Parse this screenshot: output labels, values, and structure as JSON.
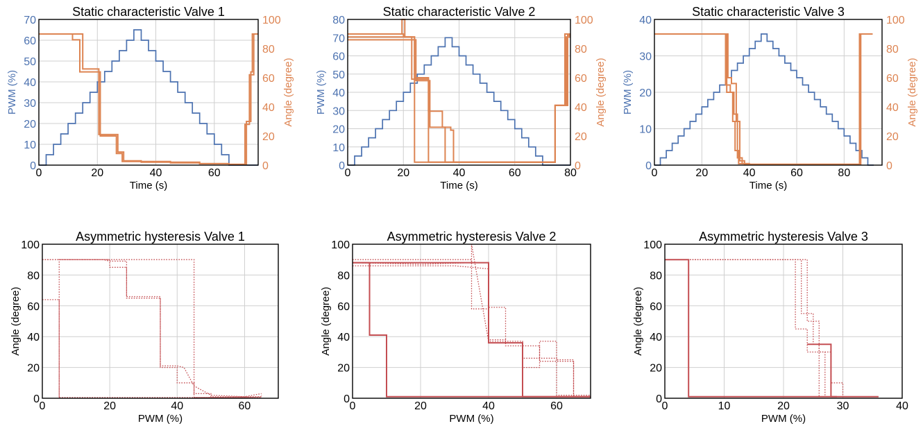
{
  "colors": {
    "pwm": "#4c72b0",
    "angle": "#dd8452",
    "hysteresis": "#c44e52",
    "grid": "#cfcfcf"
  },
  "chart_data": [
    {
      "type": "line",
      "title": "Static characteristic Valve 1",
      "xlabel": "Time (s)",
      "ylabel": "PWM (%)",
      "y2label": "Angle (degree)",
      "xlim": [
        0,
        75
      ],
      "ylim": [
        0,
        70
      ],
      "y2lim": [
        0,
        100
      ],
      "xticks": [
        0,
        20,
        40,
        60
      ],
      "yticks": [
        0,
        10,
        20,
        30,
        40,
        50,
        60,
        70
      ],
      "y2ticks": [
        0,
        20,
        40,
        60,
        80,
        100
      ],
      "grid": true,
      "series": [
        {
          "axis": "left",
          "style": "step",
          "x": [
            0,
            2.5,
            5,
            7.5,
            10,
            12.5,
            15,
            17.5,
            20,
            22.5,
            25,
            27.5,
            30,
            32.5,
            35,
            37.5,
            40,
            42.5,
            45,
            47.5,
            50,
            52.5,
            55,
            57.5,
            60,
            62.5,
            65,
            67.5,
            70,
            72.5,
            75
          ],
          "y": [
            0,
            5,
            10,
            15,
            20,
            25,
            30,
            35,
            40,
            45,
            50,
            55,
            60,
            65,
            60,
            55,
            50,
            45,
            40,
            35,
            30,
            25,
            20,
            15,
            10,
            5,
            0,
            0,
            0,
            0,
            0
          ]
        },
        {
          "axis": "right",
          "style": "step",
          "x": [
            0,
            12,
            15,
            19.5,
            20.5,
            26,
            27,
            29,
            35,
            45,
            55,
            65,
            70,
            71,
            72.5,
            73,
            75
          ],
          "y": [
            90,
            90,
            66,
            66,
            21,
            21,
            9,
            3,
            2.5,
            2,
            1,
            0.5,
            0.5,
            30,
            64,
            90,
            90
          ]
        },
        {
          "axis": "right",
          "style": "step",
          "x": [
            0,
            11.5,
            14,
            20,
            21,
            25.5,
            26.5,
            28.5,
            35,
            45,
            55,
            65,
            69.5,
            70.5,
            72,
            73.5,
            75
          ],
          "y": [
            90,
            86,
            64,
            64,
            20,
            20,
            8,
            2.5,
            2,
            1.5,
            1,
            0.5,
            0.5,
            28,
            62,
            90,
            90
          ]
        }
      ]
    },
    {
      "type": "line",
      "title": "Static characteristic Valve 2",
      "xlabel": "Time (s)",
      "ylabel": "PWM (%)",
      "y2label": "Angle (degree)",
      "xlim": [
        0,
        80
      ],
      "ylim": [
        0,
        80
      ],
      "y2lim": [
        0,
        100
      ],
      "xticks": [
        0,
        20,
        40,
        60,
        80
      ],
      "yticks": [
        0,
        10,
        20,
        30,
        40,
        50,
        60,
        70,
        80
      ],
      "y2ticks": [
        0,
        20,
        40,
        60,
        80,
        100
      ],
      "grid": true,
      "series": [
        {
          "axis": "left",
          "style": "step",
          "x": [
            0,
            2.5,
            5,
            7.5,
            10,
            12.5,
            15,
            17.5,
            20,
            22.5,
            25,
            27.5,
            30,
            32.5,
            35,
            37.5,
            40,
            42.5,
            45,
            47.5,
            50,
            52.5,
            55,
            57.5,
            60,
            62.5,
            65,
            67.5,
            70,
            72.5,
            75,
            77.5,
            80
          ],
          "y": [
            0,
            5,
            10,
            15,
            20,
            25,
            30,
            35,
            40,
            45,
            50,
            55,
            60,
            65,
            70,
            65,
            60,
            55,
            50,
            45,
            40,
            35,
            30,
            25,
            20,
            15,
            10,
            5,
            0,
            0,
            0,
            0,
            0
          ]
        },
        {
          "axis": "right",
          "style": "step",
          "x": [
            0,
            20,
            23,
            28,
            29,
            40,
            50,
            60,
            73.5,
            74.5,
            79,
            80
          ],
          "y": [
            90,
            88,
            59,
            59,
            2,
            2,
            2,
            2,
            2,
            41,
            90,
            90
          ]
        },
        {
          "axis": "right",
          "style": "step",
          "x": [
            0,
            22.5,
            24,
            29,
            30,
            34,
            35,
            45,
            55,
            65,
            73.5,
            74.5,
            79,
            80
          ],
          "y": [
            88,
            88,
            60,
            37,
            37,
            26,
            2,
            2,
            2,
            2,
            2,
            41,
            89,
            89
          ]
        },
        {
          "axis": "right",
          "style": "step",
          "x": [
            0,
            23,
            24.5,
            29.5,
            30.5,
            37,
            38,
            50,
            60,
            70,
            73.5,
            74.5,
            78.5,
            80
          ],
          "y": [
            86,
            86,
            58,
            26,
            26,
            24,
            2,
            2,
            2,
            2,
            2,
            41,
            88,
            88
          ]
        },
        {
          "axis": "right",
          "style": "step",
          "x": [
            0,
            19.5,
            20.5,
            23,
            24,
            30,
            35,
            45,
            55,
            65,
            73.5,
            74.5,
            78,
            80
          ],
          "y": [
            90,
            100,
            88,
            88,
            2,
            2,
            2,
            2,
            2,
            2,
            2,
            41,
            90,
            90
          ]
        }
      ]
    },
    {
      "type": "line",
      "title": "Static characteristic Valve 3",
      "xlabel": "Time (s)",
      "ylabel": "PWM (%)",
      "y2label": "Angle (degree)",
      "xlim": [
        0,
        96
      ],
      "ylim": [
        0,
        40
      ],
      "y2lim": [
        0,
        100
      ],
      "xticks": [
        0,
        20,
        40,
        60,
        80
      ],
      "yticks": [
        0,
        10,
        20,
        30,
        40
      ],
      "y2ticks": [
        0,
        20,
        40,
        60,
        80,
        100
      ],
      "grid": true,
      "series": [
        {
          "axis": "left",
          "style": "step",
          "x": [
            0,
            2.5,
            5,
            7.5,
            10,
            12.5,
            15,
            17.5,
            20,
            22.5,
            25,
            27.5,
            30,
            32.5,
            35,
            37.5,
            40,
            42.5,
            45,
            47.5,
            50,
            52.5,
            55,
            57.5,
            60,
            62.5,
            65,
            67.5,
            70,
            72.5,
            75,
            77.5,
            80,
            82.5,
            85,
            87.5,
            90,
            92.5
          ],
          "y": [
            0,
            2,
            4,
            6,
            8,
            10,
            12,
            14,
            16,
            18,
            20,
            22,
            24,
            26,
            28,
            30,
            32,
            34,
            36,
            34,
            32,
            30,
            28,
            26,
            24,
            22,
            20,
            18,
            16,
            14,
            12,
            10,
            8,
            6,
            4,
            2,
            0,
            0
          ]
        },
        {
          "axis": "right",
          "style": "step",
          "x": [
            0,
            28.5,
            30,
            32,
            33.5,
            35,
            37,
            40,
            50,
            60,
            70,
            80,
            85.5,
            86.5,
            92
          ],
          "y": [
            90,
            90,
            55,
            50,
            35,
            5,
            1,
            0.5,
            0.5,
            0.5,
            0.5,
            0.5,
            0.5,
            90,
            90
          ]
        },
        {
          "axis": "right",
          "style": "step",
          "x": [
            0,
            29,
            30.5,
            33,
            34,
            35.5,
            38,
            40,
            50,
            60,
            70,
            80,
            85.5,
            86.5,
            92
          ],
          "y": [
            90,
            90,
            50,
            30,
            10,
            1,
            0.5,
            0.5,
            0.5,
            0.5,
            0.5,
            0.5,
            0.5,
            90,
            90
          ]
        },
        {
          "axis": "right",
          "style": "step",
          "x": [
            0,
            29.5,
            31,
            32.5,
            34.5,
            36,
            38,
            40,
            50,
            60,
            70,
            80,
            86,
            87,
            92
          ],
          "y": [
            90,
            90,
            60,
            56,
            30,
            3,
            1,
            0.5,
            0.5,
            0.5,
            0.5,
            0.5,
            0.5,
            90,
            90
          ]
        }
      ]
    },
    {
      "type": "line",
      "title": "Asymmetric hysteresis Valve 1",
      "xlabel": "PWM (%)",
      "ylabel": "Angle (degree)",
      "xlim": [
        0,
        70
      ],
      "ylim": [
        0,
        100
      ],
      "xticks": [
        0,
        20,
        40,
        60
      ],
      "yticks": [
        0,
        20,
        40,
        60,
        80,
        100
      ],
      "grid": true,
      "series": [
        {
          "style": "dotted",
          "x": [
            0,
            20,
            20,
            25,
            25,
            35,
            35,
            40,
            40,
            45,
            45,
            50,
            50,
            65,
            65
          ],
          "y": [
            90,
            90,
            85,
            85,
            65,
            65,
            20,
            20,
            10,
            10,
            3,
            3,
            1,
            1,
            2
          ]
        },
        {
          "style": "dotted",
          "x": [
            0,
            18,
            20,
            25,
            25,
            34,
            35,
            35,
            40,
            42,
            45,
            45,
            50,
            60,
            65
          ],
          "y": [
            90,
            90,
            89,
            89,
            66,
            66,
            66,
            21,
            21,
            20,
            8,
            8,
            2,
            1,
            3
          ]
        },
        {
          "style": "dotted",
          "x": [
            0,
            5,
            5,
            10,
            20,
            30,
            40,
            50,
            60,
            65,
            65
          ],
          "y": [
            64,
            64,
            0.5,
            0.5,
            0.5,
            0.5,
            0.5,
            0.5,
            0.5,
            0.5,
            0.5
          ]
        },
        {
          "style": "dotted",
          "x": [
            5,
            5,
            10,
            30,
            45,
            45,
            50,
            60,
            65
          ],
          "y": [
            0.5,
            90,
            90,
            90,
            90,
            0.5,
            0.5,
            0.5,
            1
          ]
        }
      ]
    },
    {
      "type": "line",
      "title": "Asymmetric hysteresis Valve 2",
      "xlabel": "PWM (%)",
      "ylabel": "Angle (degree)",
      "xlim": [
        0,
        70
      ],
      "ylim": [
        0,
        100
      ],
      "xticks": [
        0,
        20,
        40,
        60
      ],
      "yticks": [
        0,
        20,
        40,
        60,
        80,
        100
      ],
      "grid": true,
      "series": [
        {
          "style": "solid",
          "x": [
            0,
            5,
            5,
            10,
            10,
            20,
            40,
            60,
            70
          ],
          "y": [
            88,
            88,
            41,
            41,
            1,
            1,
            1,
            1,
            1
          ]
        },
        {
          "style": "solid",
          "x": [
            0,
            40,
            40,
            50,
            50,
            60,
            70
          ],
          "y": [
            88,
            88,
            36,
            36,
            1,
            1,
            1
          ]
        },
        {
          "style": "dotted",
          "x": [
            0,
            35,
            35,
            40,
            40,
            45,
            45,
            50,
            50,
            60,
            60,
            65,
            65,
            70
          ],
          "y": [
            90,
            90,
            58,
            58,
            38,
            38,
            36,
            36,
            26,
            26,
            25,
            25,
            1,
            1
          ]
        },
        {
          "style": "dotted",
          "x": [
            0,
            20,
            35,
            35,
            40,
            40,
            50,
            50,
            55,
            55,
            60,
            60,
            70
          ],
          "y": [
            88,
            87,
            88,
            100,
            37,
            37,
            37,
            20,
            20,
            37,
            37,
            2,
            2
          ]
        },
        {
          "style": "dotted",
          "x": [
            0,
            30,
            40,
            40,
            45,
            45,
            55,
            55,
            65,
            65,
            70
          ],
          "y": [
            86,
            86,
            84,
            59,
            59,
            34,
            34,
            24,
            24,
            1,
            1
          ]
        }
      ]
    },
    {
      "type": "line",
      "title": "Asymmetric hysteresis Valve 3",
      "xlabel": "PWM (%)",
      "ylabel": "Angle (degree)",
      "xlim": [
        0,
        40
      ],
      "ylim": [
        0,
        100
      ],
      "xticks": [
        0,
        10,
        20,
        30,
        40
      ],
      "yticks": [
        0,
        20,
        40,
        60,
        80,
        100
      ],
      "grid": true,
      "series": [
        {
          "style": "solid",
          "x": [
            0,
            4,
            4,
            10,
            20,
            30,
            36
          ],
          "y": [
            90,
            90,
            1,
            1,
            1,
            1,
            1
          ]
        },
        {
          "style": "solid",
          "x": [
            24,
            28,
            28,
            29
          ],
          "y": [
            35,
            35,
            1,
            1
          ]
        },
        {
          "style": "dotted",
          "x": [
            0,
            24,
            24,
            26,
            26,
            28,
            28,
            30,
            30,
            36
          ],
          "y": [
            90,
            90,
            50,
            50,
            30,
            30,
            10,
            10,
            1,
            1
          ]
        },
        {
          "style": "dotted",
          "x": [
            0,
            23,
            23,
            25,
            25,
            26,
            26,
            36
          ],
          "y": [
            90,
            90,
            55,
            55,
            35,
            35,
            1,
            1
          ]
        },
        {
          "style": "dotted",
          "x": [
            0,
            22,
            22,
            24,
            24,
            27,
            27,
            36
          ],
          "y": [
            90,
            90,
            45,
            45,
            30,
            30,
            1,
            1
          ]
        }
      ]
    }
  ]
}
